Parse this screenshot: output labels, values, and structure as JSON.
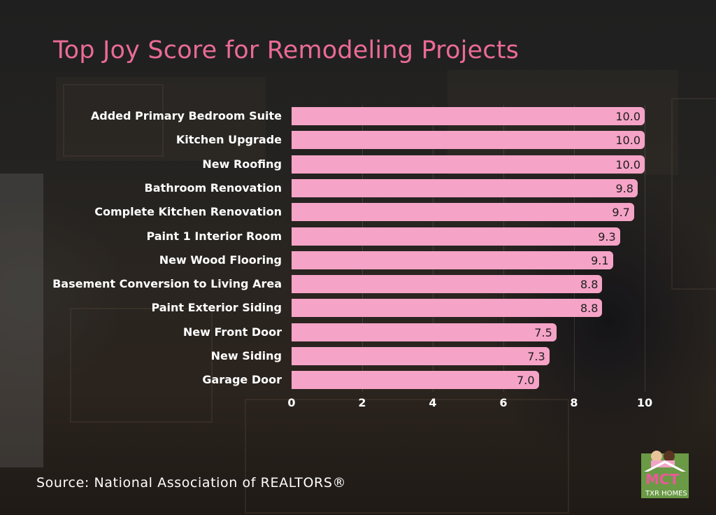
{
  "title": "Top Joy Score for Remodeling Projects",
  "source": "Source: National Association of REALTORS®",
  "logo": {
    "name": "MCT TXR Homes logo",
    "text_main": "MCT",
    "text_sub": "TXR HOMES"
  },
  "colors": {
    "title": "#ea6b97",
    "bar": "#f5a3c6",
    "label": "#ffffff",
    "value": "#1d1d1d"
  },
  "axis": {
    "ticks": [
      "0",
      "2",
      "4",
      "6",
      "8",
      "10"
    ]
  },
  "rows": [
    {
      "label": "Added Primary Bedroom Suite",
      "value": "10.0"
    },
    {
      "label": "Kitchen Upgrade",
      "value": "10.0"
    },
    {
      "label": "New Roofing",
      "value": "10.0"
    },
    {
      "label": "Bathroom Renovation",
      "value": "9.8"
    },
    {
      "label": "Complete Kitchen Renovation",
      "value": "9.7"
    },
    {
      "label": "Paint 1 Interior Room",
      "value": "9.3"
    },
    {
      "label": "New Wood Flooring",
      "value": "9.1"
    },
    {
      "label": "Basement Conversion to Living Area",
      "value": "8.8"
    },
    {
      "label": "Paint Exterior Siding",
      "value": "8.8"
    },
    {
      "label": "New Front Door",
      "value": "7.5"
    },
    {
      "label": "New Siding",
      "value": "7.3"
    },
    {
      "label": "Garage Door",
      "value": "7.0"
    }
  ],
  "chart_data": {
    "type": "bar",
    "orientation": "horizontal",
    "title": "Top Joy Score for Remodeling Projects",
    "categories": [
      "Added Primary Bedroom Suite",
      "Kitchen Upgrade",
      "New Roofing",
      "Bathroom Renovation",
      "Complete Kitchen Renovation",
      "Paint 1 Interior Room",
      "New Wood Flooring",
      "Basement Conversion to Living Area",
      "Paint Exterior Siding",
      "New Front Door",
      "New Siding",
      "Garage Door"
    ],
    "values": [
      10.0,
      10.0,
      10.0,
      9.8,
      9.7,
      9.3,
      9.1,
      8.8,
      8.8,
      7.5,
      7.3,
      7.0
    ],
    "xlabel": "",
    "ylabel": "",
    "xlim": [
      0,
      10
    ],
    "xticks": [
      0,
      2,
      4,
      6,
      8,
      10
    ],
    "grid": true,
    "data_labels": true,
    "legend": null,
    "annotation": "Source: National Association of REALTORS®"
  }
}
